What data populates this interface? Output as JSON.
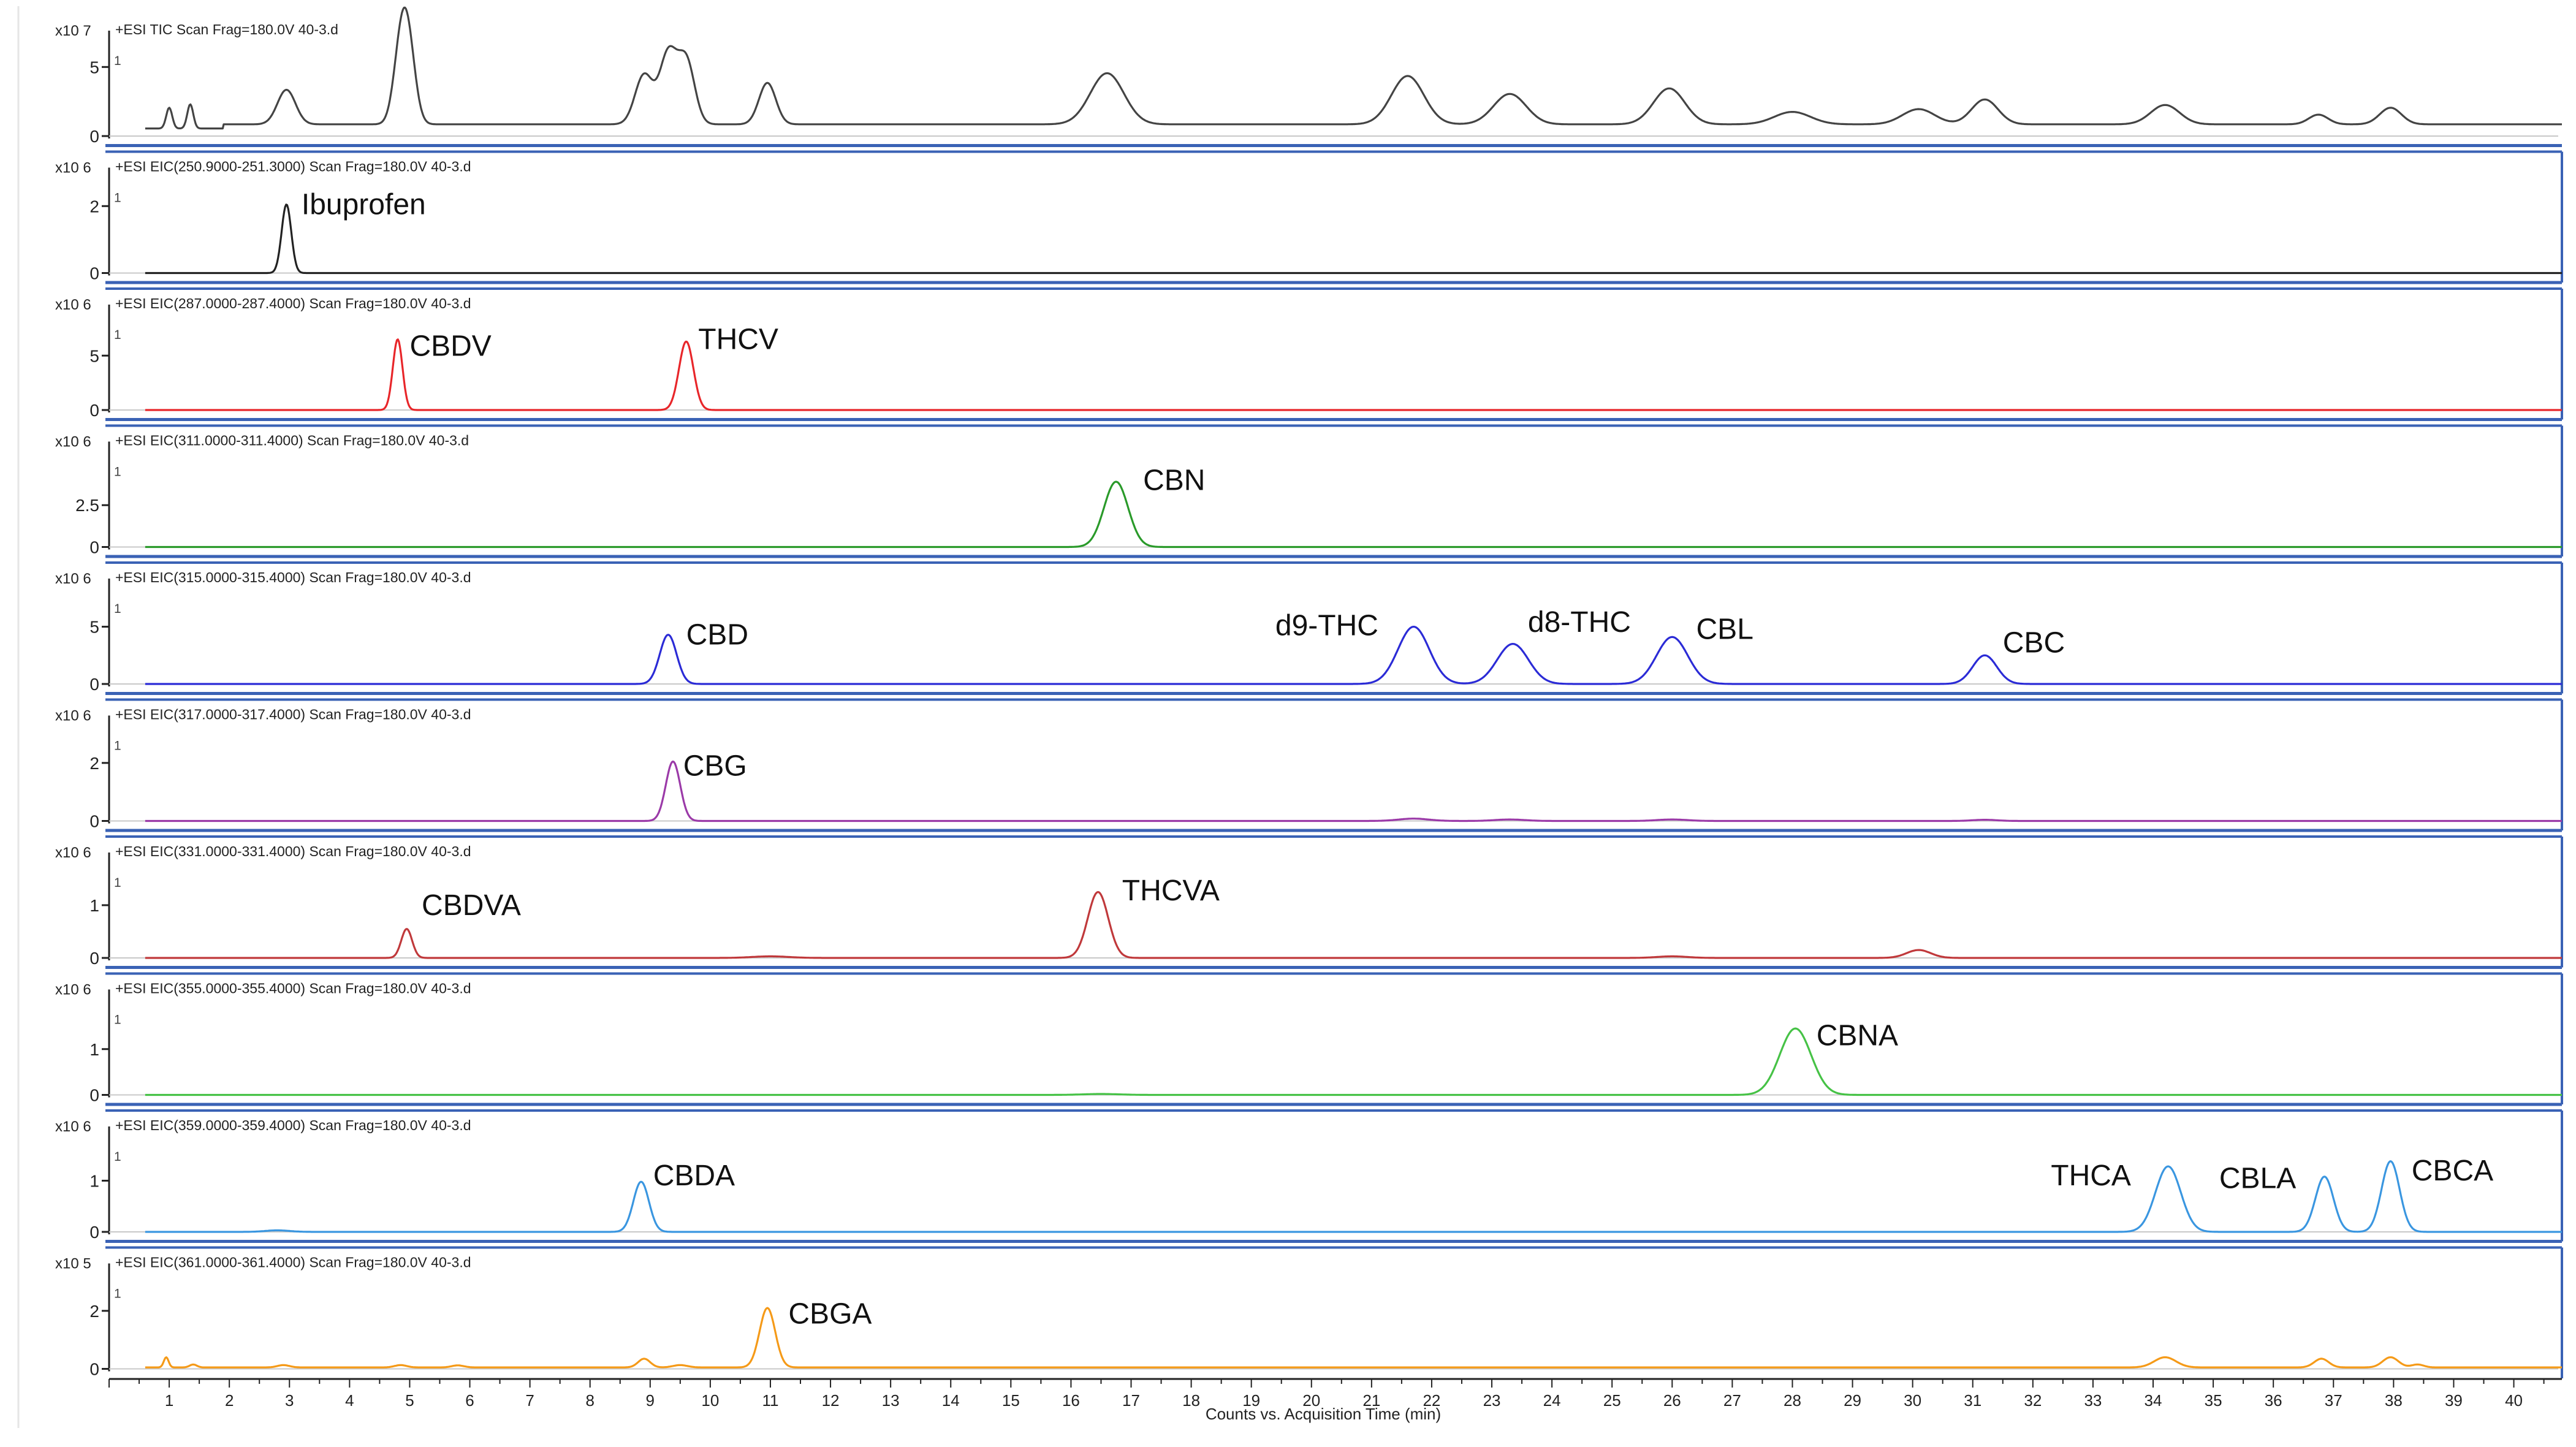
{
  "xaxis": {
    "label": "Counts vs. Acquisition Time (min)",
    "min": 0,
    "max": 40.8,
    "ticks": [
      1,
      2,
      3,
      4,
      5,
      6,
      7,
      8,
      9,
      10,
      11,
      12,
      13,
      14,
      15,
      16,
      17,
      18,
      19,
      20,
      21,
      22,
      23,
      24,
      25,
      26,
      27,
      28,
      29,
      30,
      31,
      32,
      33,
      34,
      35,
      36,
      37,
      38,
      39,
      40
    ]
  },
  "colors": {
    "frame": "#3a62b5",
    "axis": "#222222",
    "baseline": "#c8c8c8"
  },
  "chart_data": [
    {
      "type": "line",
      "title": "+ESI TIC Scan Frag=180.0V 40-3.d",
      "y_scale": "x10 7",
      "ylim": [
        0,
        6.3
      ],
      "yticks": [
        0,
        5
      ],
      "color": "#444444",
      "baseline": 0.55,
      "bump": {
        "value": 0.3,
        "from": 1.9
      },
      "peaks": [
        {
          "x": 1.0,
          "y": 1.5,
          "w": 0.05
        },
        {
          "x": 1.35,
          "y": 1.75,
          "w": 0.05
        },
        {
          "x": 2.95,
          "y": 2.5,
          "w": 0.15
        },
        {
          "x": 4.85,
          "y": 4.9,
          "w": 0.12
        },
        {
          "x": 4.98,
          "y": 4.9,
          "w": 0.12
        },
        {
          "x": 8.9,
          "y": 3.6,
          "w": 0.15
        },
        {
          "x": 9.3,
          "y": 5.0,
          "w": 0.14
        },
        {
          "x": 9.6,
          "y": 4.6,
          "w": 0.14
        },
        {
          "x": 10.95,
          "y": 3.0,
          "w": 0.14
        },
        {
          "x": 16.6,
          "y": 3.7,
          "w": 0.28
        },
        {
          "x": 21.6,
          "y": 3.5,
          "w": 0.27
        },
        {
          "x": 23.3,
          "y": 2.2,
          "w": 0.27
        },
        {
          "x": 25.95,
          "y": 2.6,
          "w": 0.26
        },
        {
          "x": 28.0,
          "y": 0.9,
          "w": 0.3
        },
        {
          "x": 30.1,
          "y": 1.1,
          "w": 0.27
        },
        {
          "x": 31.2,
          "y": 1.8,
          "w": 0.22
        },
        {
          "x": 34.2,
          "y": 1.4,
          "w": 0.24
        },
        {
          "x": 36.75,
          "y": 0.7,
          "w": 0.16
        },
        {
          "x": 37.95,
          "y": 1.2,
          "w": 0.18
        }
      ],
      "annotations": []
    },
    {
      "type": "line",
      "title": "+ESI EIC(250.9000-251.3000) Scan Frag=180.0V 40-3.d",
      "y_scale": "x10 6",
      "ylim": [
        0,
        2.6
      ],
      "yticks": [
        0,
        2
      ],
      "color": "#222222",
      "baseline": 0.0,
      "peaks": [
        {
          "x": 2.95,
          "y": 2.05,
          "w": 0.08
        }
      ],
      "annotations": [
        {
          "text": "Ibuprofen",
          "x": 3.2,
          "y": 2.05
        }
      ]
    },
    {
      "type": "line",
      "title": "+ESI EIC(287.0000-287.4000) Scan Frag=180.0V 40-3.d",
      "y_scale": "x10 6",
      "ylim": [
        0,
        8.0
      ],
      "yticks": [
        0,
        5
      ],
      "color": "#e8262a",
      "baseline": 0.0,
      "peaks": [
        {
          "x": 4.8,
          "y": 6.5,
          "w": 0.08
        },
        {
          "x": 9.6,
          "y": 6.3,
          "w": 0.12
        }
      ],
      "annotations": [
        {
          "text": "CBDV",
          "x": 5.0,
          "y": 5.9
        },
        {
          "text": "THCV",
          "x": 9.8,
          "y": 6.5
        }
      ]
    },
    {
      "type": "line",
      "title": "+ESI EIC(311.0000-311.4000) Scan Frag=180.0V 40-3.d",
      "y_scale": "x10 6",
      "ylim": [
        0,
        5.2
      ],
      "yticks": [
        0,
        2.5
      ],
      "color": "#2a9a2a",
      "baseline": 0.0,
      "peaks": [
        {
          "x": 16.75,
          "y": 3.9,
          "w": 0.2
        }
      ],
      "annotations": [
        {
          "text": "CBN",
          "x": 17.2,
          "y": 4.0
        }
      ]
    },
    {
      "type": "line",
      "title": "+ESI EIC(315.0000-315.4000) Scan Frag=180.0V 40-3.d",
      "y_scale": "x10 6",
      "ylim": [
        0,
        7.6
      ],
      "yticks": [
        0,
        5
      ],
      "color": "#2b2bd6",
      "baseline": 0.0,
      "peaks": [
        {
          "x": 9.3,
          "y": 4.3,
          "w": 0.14
        },
        {
          "x": 21.7,
          "y": 5.0,
          "w": 0.26
        },
        {
          "x": 23.35,
          "y": 3.5,
          "w": 0.26
        },
        {
          "x": 26.0,
          "y": 4.1,
          "w": 0.26
        },
        {
          "x": 31.2,
          "y": 2.5,
          "w": 0.2
        }
      ],
      "annotations": [
        {
          "text": "CBD",
          "x": 9.6,
          "y": 4.3
        },
        {
          "text": "d9-THC",
          "x": 19.4,
          "y": 5.1
        },
        {
          "text": "d8-THC",
          "x": 23.6,
          "y": 5.4
        },
        {
          "text": "CBL",
          "x": 26.4,
          "y": 4.8
        },
        {
          "text": "CBC",
          "x": 31.5,
          "y": 3.6
        }
      ]
    },
    {
      "type": "line",
      "title": "+ESI EIC(317.0000-317.4000) Scan Frag=180.0V 40-3.d",
      "y_scale": "x10 6",
      "ylim": [
        0,
        3.0
      ],
      "yticks": [
        0,
        2
      ],
      "color": "#9b3aa8",
      "baseline": 0.0,
      "peaks": [
        {
          "x": 9.38,
          "y": 2.05,
          "w": 0.12
        },
        {
          "x": 21.7,
          "y": 0.08,
          "w": 0.25
        },
        {
          "x": 23.3,
          "y": 0.05,
          "w": 0.25
        },
        {
          "x": 26.0,
          "y": 0.05,
          "w": 0.25
        },
        {
          "x": 31.2,
          "y": 0.04,
          "w": 0.2
        }
      ],
      "annotations": [
        {
          "text": "CBG",
          "x": 9.55,
          "y": 1.9
        }
      ]
    },
    {
      "type": "line",
      "title": "+ESI EIC(331.0000-331.4000) Scan Frag=180.0V 40-3.d",
      "y_scale": "x10 6",
      "ylim": [
        0,
        1.65
      ],
      "yticks": [
        0,
        1
      ],
      "color": "#c0393b",
      "baseline": 0.0,
      "peaks": [
        {
          "x": 4.95,
          "y": 0.55,
          "w": 0.09
        },
        {
          "x": 11.0,
          "y": 0.03,
          "w": 0.3
        },
        {
          "x": 16.45,
          "y": 1.25,
          "w": 0.17
        },
        {
          "x": 26.0,
          "y": 0.03,
          "w": 0.25
        },
        {
          "x": 30.1,
          "y": 0.15,
          "w": 0.2
        }
      ],
      "annotations": [
        {
          "text": "CBDVA",
          "x": 5.2,
          "y": 1.0
        },
        {
          "text": "THCVA",
          "x": 16.85,
          "y": 1.28
        }
      ]
    },
    {
      "type": "line",
      "title": "+ESI EIC(355.0000-355.4000) Scan Frag=180.0V 40-3.d",
      "y_scale": "x10 6",
      "ylim": [
        0,
        1.9
      ],
      "yticks": [
        0,
        1
      ],
      "color": "#46c246",
      "baseline": 0.0,
      "peaks": [
        {
          "x": 28.05,
          "y": 1.45,
          "w": 0.26
        },
        {
          "x": 16.5,
          "y": 0.02,
          "w": 0.3
        }
      ],
      "annotations": [
        {
          "text": "CBNA",
          "x": 28.4,
          "y": 1.3
        }
      ]
    },
    {
      "type": "line",
      "title": "+ESI EIC(359.0000-359.4000) Scan Frag=180.0V 40-3.d",
      "y_scale": "x10 6",
      "ylim": [
        0,
        1.7
      ],
      "yticks": [
        0,
        1
      ],
      "color": "#3a96e0",
      "baseline": 0.0,
      "peaks": [
        {
          "x": 2.8,
          "y": 0.03,
          "w": 0.2
        },
        {
          "x": 8.85,
          "y": 0.98,
          "w": 0.13
        },
        {
          "x": 34.25,
          "y": 1.28,
          "w": 0.21
        },
        {
          "x": 36.85,
          "y": 1.08,
          "w": 0.15
        },
        {
          "x": 37.95,
          "y": 1.38,
          "w": 0.15
        }
      ],
      "annotations": [
        {
          "text": "CBDA",
          "x": 9.05,
          "y": 1.1
        },
        {
          "text": "THCA",
          "x": 32.3,
          "y": 1.1
        },
        {
          "text": "CBLA",
          "x": 35.1,
          "y": 1.05
        },
        {
          "text": "CBCA",
          "x": 38.3,
          "y": 1.2
        }
      ]
    },
    {
      "type": "line",
      "title": "+ESI EIC(361.0000-361.4000) Scan Frag=180.0V 40-3.d",
      "y_scale": "x10 5",
      "ylim": [
        0,
        3.0
      ],
      "yticks": [
        0,
        2
      ],
      "color": "#f59a18",
      "baseline": 0.05,
      "peaks": [
        {
          "x": 0.95,
          "y": 0.35,
          "w": 0.04
        },
        {
          "x": 1.4,
          "y": 0.1,
          "w": 0.06
        },
        {
          "x": 2.9,
          "y": 0.08,
          "w": 0.1
        },
        {
          "x": 4.85,
          "y": 0.08,
          "w": 0.1
        },
        {
          "x": 5.8,
          "y": 0.07,
          "w": 0.1
        },
        {
          "x": 8.9,
          "y": 0.3,
          "w": 0.1
        },
        {
          "x": 9.5,
          "y": 0.08,
          "w": 0.12
        },
        {
          "x": 10.95,
          "y": 2.05,
          "w": 0.13
        },
        {
          "x": 34.2,
          "y": 0.35,
          "w": 0.18
        },
        {
          "x": 36.8,
          "y": 0.3,
          "w": 0.12
        },
        {
          "x": 37.95,
          "y": 0.35,
          "w": 0.13
        },
        {
          "x": 38.4,
          "y": 0.1,
          "w": 0.1
        }
      ],
      "annotations": [
        {
          "text": "CBGA",
          "x": 11.3,
          "y": 1.9
        }
      ]
    }
  ]
}
